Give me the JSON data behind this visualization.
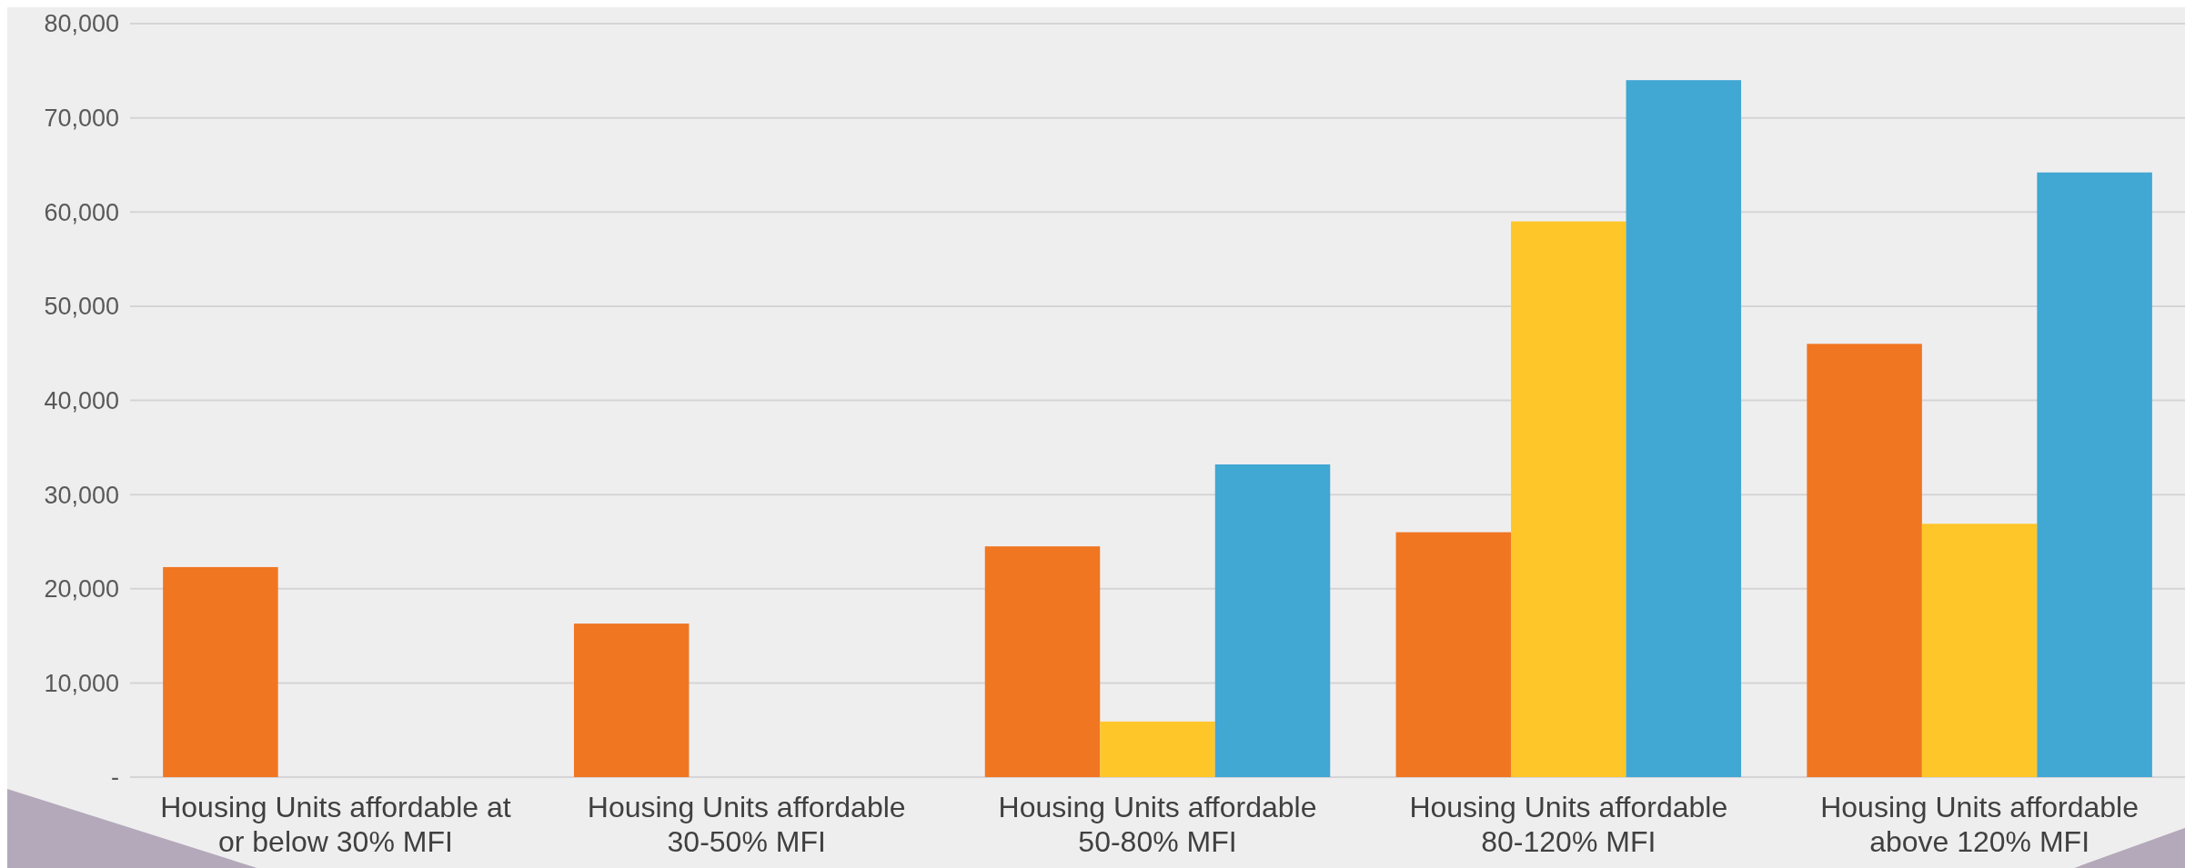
{
  "chart_data": {
    "type": "bar",
    "categories": [
      "Housing Units affordable at or below 30% MFI",
      "Housing Units affordable 30-50% MFI",
      "Housing Units affordable 50-80% MFI",
      "Housing Units affordable 80-120% MFI",
      "Housing Units affordable above 120% MFI"
    ],
    "series": [
      {
        "color": "#f07622",
        "values": [
          22300,
          16300,
          24500,
          26000,
          46000
        ]
      },
      {
        "color": "#ffc629",
        "values": [
          0,
          0,
          5900,
          59000,
          26900
        ]
      },
      {
        "color": "#41a7d3",
        "values": [
          0,
          0,
          33200,
          74000,
          64200
        ]
      }
    ],
    "ylim": [
      0,
      80000
    ],
    "yticks": [
      {
        "value": 0,
        "label": "-"
      },
      {
        "value": 10000,
        "label": "10,000"
      },
      {
        "value": 20000,
        "label": "20,000"
      },
      {
        "value": 30000,
        "label": "30,000"
      },
      {
        "value": 40000,
        "label": "40,000"
      },
      {
        "value": 50000,
        "label": "50,000"
      },
      {
        "value": 60000,
        "label": "60,000"
      },
      {
        "value": 70000,
        "label": "70,000"
      },
      {
        "value": 80000,
        "label": "80,000"
      }
    ],
    "grid": "y"
  }
}
